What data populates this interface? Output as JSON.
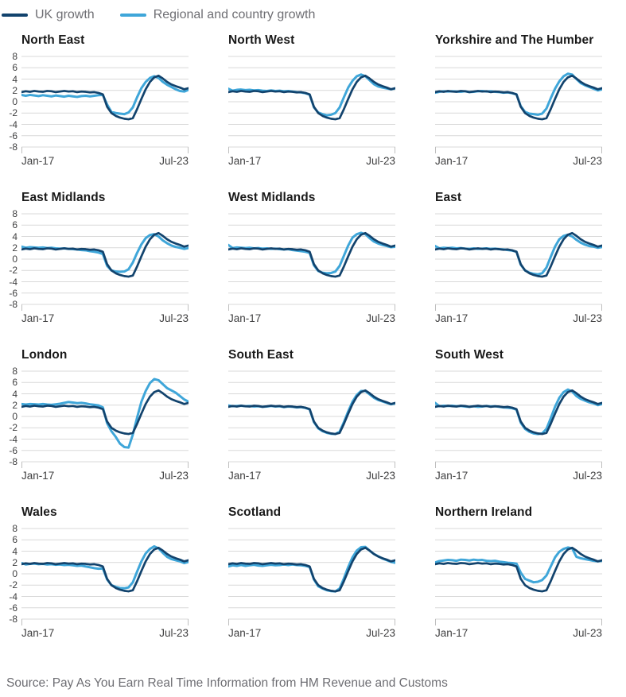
{
  "legend": [
    {
      "label": "UK growth",
      "color": "#12436D"
    },
    {
      "label": "Regional and country growth",
      "color": "#3FA6D9"
    }
  ],
  "source": "Source: Pay As You Earn Real Time Information from HM Revenue and Customs",
  "chart_data": {
    "type": "line",
    "layout": "small-multiples-3x4",
    "x_start_label": "Jan-17",
    "x_end_label": "Jul-23",
    "x_range_months": [
      "Jan-17",
      "Jul-23"
    ],
    "y_ticks": [
      8,
      6,
      4,
      2,
      0,
      -2,
      -4,
      -6,
      -8
    ],
    "ylim": [
      -8,
      8
    ],
    "grid": true,
    "grid_color": "#D9D9D9",
    "tick_color": "#BFBFBF",
    "series_names": [
      "UK growth",
      "Regional and country growth"
    ],
    "uk": [
      1.7,
      1.85,
      1.75,
      1.9,
      1.8,
      1.75,
      1.9,
      1.85,
      1.7,
      1.8,
      1.9,
      1.8,
      1.85,
      1.7,
      1.8,
      1.75,
      1.65,
      1.7,
      1.55,
      1.3,
      -0.9,
      -2.0,
      -2.5,
      -2.8,
      -3.0,
      -3.1,
      -2.9,
      -1.3,
      0.5,
      2.2,
      3.5,
      4.3,
      4.6,
      4.1,
      3.5,
      3.05,
      2.75,
      2.5,
      2.2,
      2.4
    ],
    "panels": [
      {
        "title": "North East",
        "regional": [
          1.2,
          1.05,
          1.2,
          1.1,
          1.0,
          1.15,
          1.05,
          0.95,
          1.1,
          1.0,
          0.9,
          1.05,
          0.95,
          0.85,
          1.0,
          1.05,
          0.95,
          1.05,
          1.15,
          1.2,
          -0.5,
          -1.8,
          -2.0,
          -2.1,
          -2.2,
          -1.9,
          -1.0,
          0.8,
          2.4,
          3.5,
          4.2,
          4.5,
          4.2,
          3.5,
          3.0,
          2.6,
          2.2,
          1.9,
          1.8,
          2.1
        ]
      },
      {
        "title": "North West",
        "regional": [
          2.3,
          1.95,
          2.1,
          2.15,
          2.05,
          2.1,
          2.0,
          2.05,
          1.95,
          1.9,
          2.0,
          1.9,
          1.95,
          1.85,
          1.9,
          1.8,
          1.7,
          1.65,
          1.5,
          1.25,
          -1.0,
          -1.9,
          -2.2,
          -2.4,
          -2.3,
          -2.0,
          -1.0,
          0.8,
          2.5,
          3.7,
          4.5,
          4.8,
          4.5,
          3.8,
          3.1,
          2.7,
          2.5,
          2.35,
          2.2,
          2.35
        ]
      },
      {
        "title": "Yorkshire and The Humber",
        "regional": [
          1.6,
          1.75,
          1.85,
          1.8,
          1.85,
          1.8,
          1.75,
          1.85,
          1.7,
          1.75,
          1.85,
          1.9,
          1.8,
          1.85,
          1.75,
          1.7,
          1.6,
          1.65,
          1.5,
          1.3,
          -0.8,
          -1.8,
          -2.1,
          -2.2,
          -2.3,
          -2.1,
          -1.2,
          0.6,
          2.3,
          3.6,
          4.5,
          4.95,
          4.8,
          4.0,
          3.3,
          2.9,
          2.6,
          2.3,
          2.0,
          2.2
        ]
      },
      {
        "title": "East Midlands",
        "regional": [
          2.2,
          2.0,
          2.1,
          2.05,
          2.0,
          2.05,
          1.95,
          2.0,
          1.9,
          1.85,
          1.9,
          1.8,
          1.75,
          1.7,
          1.6,
          1.55,
          1.4,
          1.3,
          1.15,
          0.9,
          -1.2,
          -2.0,
          -2.2,
          -2.25,
          -2.2,
          -1.8,
          -0.6,
          1.1,
          2.6,
          3.7,
          4.25,
          4.4,
          4.0,
          3.3,
          2.8,
          2.4,
          2.15,
          2.0,
          1.8,
          1.95
        ]
      },
      {
        "title": "West Midlands",
        "regional": [
          2.5,
          1.95,
          2.05,
          2.0,
          1.95,
          2.0,
          1.9,
          1.95,
          1.85,
          1.9,
          1.8,
          1.85,
          1.75,
          1.7,
          1.75,
          1.6,
          1.5,
          1.4,
          1.3,
          1.1,
          -1.1,
          -2.1,
          -2.4,
          -2.5,
          -2.45,
          -2.2,
          -1.2,
          0.6,
          2.4,
          3.8,
          4.4,
          4.65,
          4.4,
          3.7,
          3.1,
          2.75,
          2.5,
          2.3,
          2.1,
          2.2
        ]
      },
      {
        "title": "East",
        "regional": [
          2.3,
          1.9,
          2.0,
          1.95,
          2.0,
          1.9,
          1.95,
          1.85,
          1.8,
          1.9,
          1.8,
          1.85,
          1.9,
          1.8,
          1.85,
          1.75,
          1.7,
          1.6,
          1.5,
          1.3,
          -1.0,
          -2.0,
          -2.4,
          -2.6,
          -2.7,
          -2.5,
          -1.5,
          0.4,
          2.2,
          3.5,
          4.1,
          4.3,
          4.0,
          3.4,
          2.9,
          2.55,
          2.3,
          2.2,
          2.0,
          2.15
        ]
      },
      {
        "title": "London",
        "regional": [
          2.2,
          2.1,
          2.2,
          2.15,
          2.1,
          2.2,
          2.1,
          2.05,
          2.15,
          2.25,
          2.4,
          2.55,
          2.45,
          2.35,
          2.4,
          2.3,
          2.15,
          2.05,
          1.95,
          1.6,
          -1.2,
          -2.6,
          -3.6,
          -4.8,
          -5.4,
          -5.5,
          -3.2,
          -0.2,
          2.6,
          4.5,
          5.9,
          6.6,
          6.4,
          5.7,
          5.0,
          4.6,
          4.2,
          3.6,
          3.0,
          2.6
        ]
      },
      {
        "title": "South East",
        "regional": [
          1.95,
          1.8,
          1.85,
          1.9,
          1.8,
          1.85,
          1.75,
          1.8,
          1.7,
          1.75,
          1.85,
          1.75,
          1.8,
          1.65,
          1.75,
          1.7,
          1.6,
          1.65,
          1.5,
          1.25,
          -1.0,
          -2.1,
          -2.6,
          -2.9,
          -3.05,
          -3.1,
          -2.7,
          -1.0,
          0.9,
          2.6,
          3.8,
          4.5,
          4.5,
          3.9,
          3.3,
          2.9,
          2.65,
          2.4,
          2.15,
          2.3
        ]
      },
      {
        "title": "South West",
        "regional": [
          2.4,
          1.8,
          1.9,
          1.85,
          1.9,
          1.8,
          1.85,
          1.75,
          1.7,
          1.8,
          1.7,
          1.75,
          1.85,
          1.75,
          1.8,
          1.7,
          1.6,
          1.55,
          1.45,
          1.2,
          -1.1,
          -2.2,
          -2.7,
          -3.0,
          -3.1,
          -3.0,
          -2.2,
          -0.3,
          1.7,
          3.3,
          4.3,
          4.75,
          4.4,
          3.6,
          3.1,
          2.8,
          2.5,
          2.3,
          2.0,
          2.2
        ]
      },
      {
        "title": "Wales",
        "regional": [
          1.9,
          1.65,
          1.75,
          1.8,
          1.7,
          1.75,
          1.65,
          1.7,
          1.6,
          1.65,
          1.55,
          1.6,
          1.5,
          1.4,
          1.45,
          1.3,
          1.15,
          1.0,
          0.9,
          0.95,
          -1.0,
          -2.0,
          -2.3,
          -2.5,
          -2.55,
          -2.4,
          -1.5,
          0.4,
          2.2,
          3.6,
          4.4,
          4.85,
          4.5,
          3.7,
          3.0,
          2.6,
          2.4,
          2.2,
          1.9,
          2.1
        ]
      },
      {
        "title": "Scotland",
        "regional": [
          1.3,
          1.5,
          1.4,
          1.55,
          1.4,
          1.5,
          1.6,
          1.45,
          1.4,
          1.5,
          1.6,
          1.5,
          1.55,
          1.65,
          1.55,
          1.65,
          1.55,
          1.5,
          1.4,
          1.2,
          -1.0,
          -2.2,
          -2.6,
          -2.9,
          -3.05,
          -3.1,
          -2.6,
          -0.8,
          1.2,
          2.9,
          4.1,
          4.7,
          4.75,
          4.1,
          3.5,
          3.1,
          2.7,
          2.4,
          2.1,
          1.95
        ]
      },
      {
        "title": "Northern Ireland",
        "regional": [
          2.0,
          2.25,
          2.35,
          2.45,
          2.4,
          2.3,
          2.5,
          2.45,
          2.35,
          2.5,
          2.4,
          2.45,
          2.3,
          2.25,
          2.3,
          2.15,
          2.05,
          1.95,
          1.9,
          1.8,
          0.2,
          -0.9,
          -1.2,
          -1.5,
          -1.4,
          -1.1,
          -0.3,
          1.3,
          2.9,
          3.9,
          4.4,
          4.65,
          4.5,
          3.0,
          2.75,
          2.6,
          2.45,
          2.3,
          2.2,
          2.3
        ]
      }
    ]
  }
}
